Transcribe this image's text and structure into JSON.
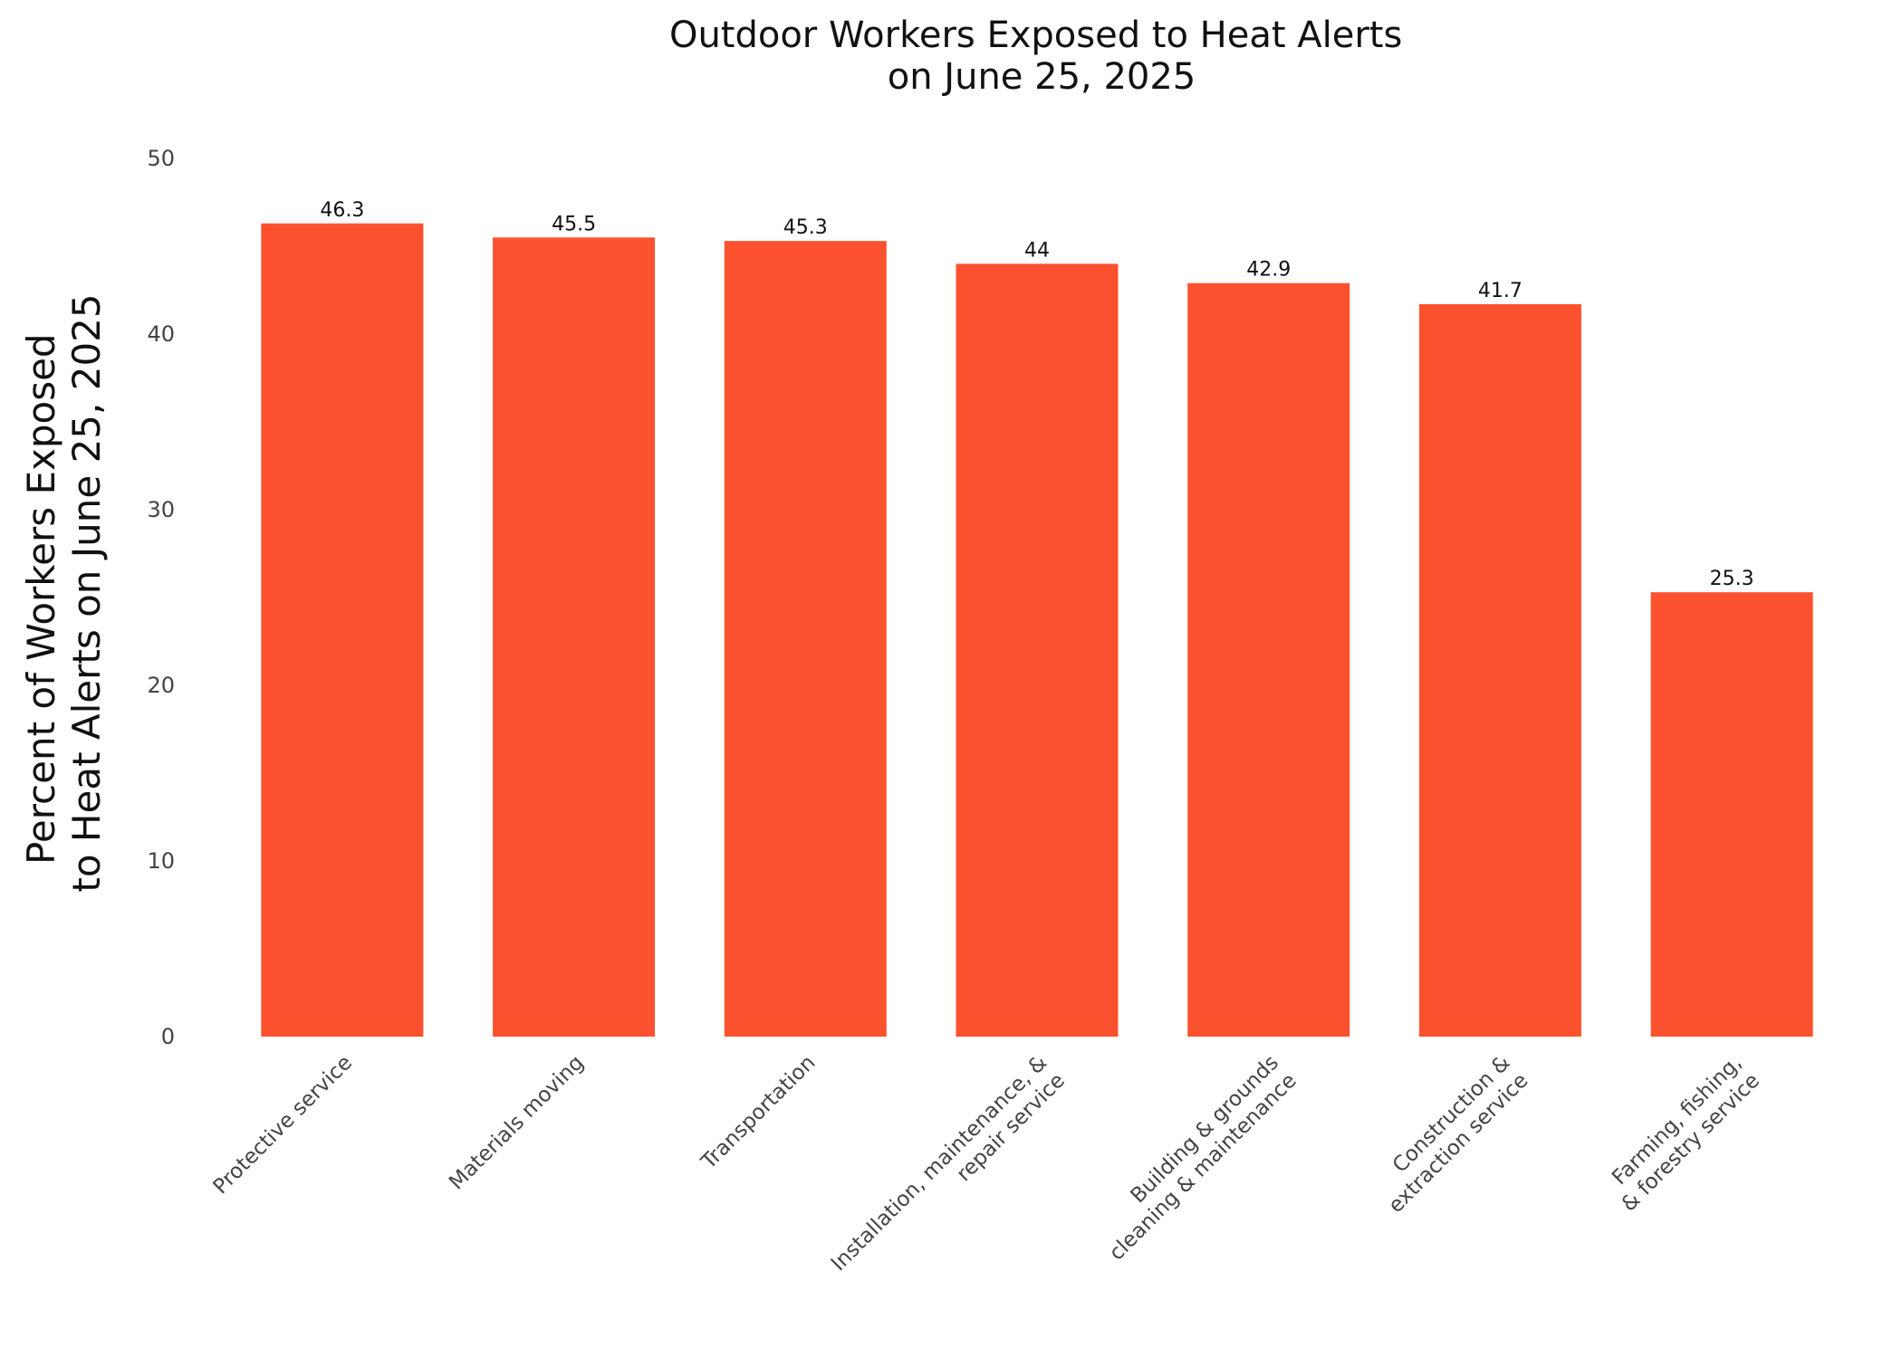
{
  "chart_data": {
    "type": "bar",
    "title": [
      "Outdoor Workers Exposed to Heat Alerts",
      "on June 25, 2025"
    ],
    "xlabel": "",
    "ylabel": [
      "Percent of Workers Exposed",
      "to Heat Alerts on June 25, 2025"
    ],
    "categories": [
      [
        "Protective service"
      ],
      [
        "Materials moving"
      ],
      [
        "Transportation"
      ],
      [
        "Installation, maintenance, &",
        "repair service"
      ],
      [
        "Building & grounds",
        "cleaning & maintenance"
      ],
      [
        "Construction &",
        "extraction service"
      ],
      [
        "Farming, fishing,",
        "& forestry service"
      ]
    ],
    "values": [
      46.3,
      45.5,
      45.3,
      44,
      42.9,
      41.7,
      25.3
    ],
    "value_labels": [
      "46.3",
      "45.5",
      "45.3",
      "44",
      "42.9",
      "41.7",
      "25.3"
    ],
    "yticks": [
      "0",
      "10",
      "20",
      "30",
      "40",
      "50"
    ],
    "ylim": [
      0,
      50
    ],
    "grid": false,
    "legend": "none",
    "bar_color": "#FC512E"
  }
}
